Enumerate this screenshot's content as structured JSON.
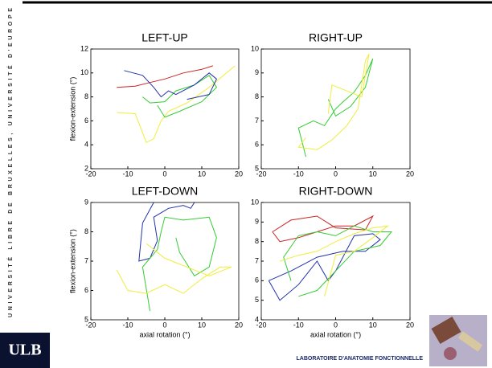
{
  "banner": "UNIVERSITÉ LIBRE DE BRUXELLES, UNIVERSITÉ D'EUROPE",
  "logo": "ULB",
  "lab": "LABORATOIRE D'ANATOMIE FONCTIONNELLE",
  "chart_data": [
    {
      "type": "line",
      "title": "LEFT-UP",
      "ylabel": "flexion-extension (°)",
      "xlim": [
        -20,
        20
      ],
      "xticks": [
        -20,
        -10,
        0,
        10,
        20
      ],
      "ylim": [
        2,
        12
      ],
      "yticks": [
        2,
        4,
        6,
        8,
        10,
        12
      ],
      "series": [
        {
          "color": "#eeee3a",
          "x": [
            -13,
            -8,
            -5,
            -3,
            -1,
            1,
            6,
            12,
            19
          ],
          "y": [
            6.7,
            6.6,
            4.2,
            4.5,
            6,
            6.8,
            7.5,
            8.8,
            10.6
          ]
        },
        {
          "color": "#33cc33",
          "x": [
            -6,
            -4,
            0,
            3,
            8,
            12,
            14,
            10,
            4,
            0,
            -2
          ],
          "y": [
            8,
            7.5,
            7.6,
            8.5,
            9,
            9.8,
            8.8,
            7.6,
            6.8,
            6.3,
            7.3
          ]
        },
        {
          "color": "#cc2222",
          "x": [
            -13,
            -8,
            -4,
            0,
            5,
            10,
            13
          ],
          "y": [
            8.8,
            8.9,
            9.2,
            9.5,
            10,
            10.3,
            10.6
          ]
        },
        {
          "color": "#2233aa",
          "x": [
            -11,
            -6,
            -3,
            -1,
            1,
            3,
            8,
            12,
            14,
            12,
            6
          ],
          "y": [
            10.2,
            9.8,
            8.8,
            8,
            8.5,
            8.2,
            9,
            10,
            9.5,
            8.2,
            7.8
          ]
        }
      ]
    },
    {
      "type": "line",
      "title": "RIGHT-UP",
      "xlim": [
        -20,
        20
      ],
      "xticks": [
        -20,
        -10,
        0,
        10,
        20
      ],
      "ylim": [
        5,
        10
      ],
      "yticks": [
        5,
        6,
        7,
        8,
        9,
        10
      ],
      "series": [
        {
          "color": "#33cc33",
          "x": [
            -8,
            -10,
            -6,
            -3,
            0,
            2,
            5,
            8,
            10,
            8,
            4,
            0,
            -2
          ],
          "y": [
            5.5,
            6.7,
            7,
            6.8,
            7.5,
            7.8,
            8.2,
            8.9,
            9.6,
            8.4,
            7.6,
            7.2,
            7.9
          ]
        },
        {
          "color": "#eeee3a",
          "x": [
            -8,
            -10,
            -5,
            -1,
            3,
            6,
            8,
            9,
            7,
            -1,
            -2
          ],
          "y": [
            6.3,
            5.9,
            5.8,
            6.2,
            6.8,
            7.5,
            9.5,
            9.8,
            8,
            8.5,
            7.3
          ]
        }
      ]
    },
    {
      "type": "line",
      "title": "LEFT-DOWN",
      "xlabel": "axial rotation (°)",
      "ylabel": "flexion-extension (°)",
      "xlim": [
        -20,
        20
      ],
      "xticks": [
        -20,
        -10,
        0,
        10,
        20
      ],
      "ylim": [
        5,
        9
      ],
      "yticks": [
        5,
        6,
        7,
        8,
        9
      ],
      "series": [
        {
          "color": "#2233aa",
          "x": [
            -3,
            -6,
            -7,
            -4,
            -2,
            -3,
            1,
            5,
            7,
            8
          ],
          "y": [
            9,
            8.3,
            7,
            7.1,
            7.7,
            8.5,
            8.8,
            8.9,
            8.8,
            9
          ]
        },
        {
          "color": "#33cc33",
          "x": [
            -4,
            -6,
            -2,
            -1,
            0,
            5,
            12,
            14,
            12,
            8,
            4,
            3
          ],
          "y": [
            5.3,
            6.8,
            7.4,
            8,
            8.5,
            8.4,
            8.5,
            7.8,
            6.8,
            6.5,
            7.3,
            7.8
          ]
        },
        {
          "color": "#eeee3a",
          "x": [
            -13,
            -10,
            -5,
            0,
            5,
            10,
            15,
            18,
            12,
            0,
            -5
          ],
          "y": [
            6.7,
            6,
            5.9,
            6.2,
            5.9,
            6.4,
            6.8,
            6.8,
            6.5,
            7.1,
            7.6
          ]
        }
      ]
    },
    {
      "type": "line",
      "title": "RIGHT-DOWN",
      "xlabel": "axial rotation (°)",
      "xlim": [
        -20,
        20
      ],
      "xticks": [
        -20,
        -10,
        0,
        10,
        20
      ],
      "ylim": [
        4,
        10
      ],
      "yticks": [
        4,
        5,
        6,
        7,
        8,
        9,
        10
      ],
      "series": [
        {
          "color": "#cc2222",
          "x": [
            -17,
            -15,
            -10,
            -5,
            0,
            5,
            10,
            8,
            0,
            -5,
            -12,
            -17
          ],
          "y": [
            8.5,
            8,
            8.2,
            8.5,
            8.8,
            8.8,
            9.3,
            8.6,
            8.7,
            9.3,
            9.1,
            8.5
          ]
        },
        {
          "color": "#2233aa",
          "x": [
            -18,
            -15,
            -10,
            -5,
            -2,
            0,
            5,
            10,
            12,
            8,
            2,
            -5,
            -12,
            -18
          ],
          "y": [
            6,
            5,
            5.8,
            7,
            6,
            6.5,
            8.3,
            8.4,
            8.1,
            7.5,
            7.5,
            7.2,
            6.5,
            6
          ]
        },
        {
          "color": "#33cc33",
          "x": [
            -12,
            -14,
            -10,
            -5,
            0,
            5,
            10,
            15,
            12,
            5,
            0,
            -5,
            -10
          ],
          "y": [
            6,
            7.2,
            8.3,
            8.5,
            8.3,
            8.8,
            8.5,
            8.5,
            7.8,
            7.5,
            6.5,
            5.5,
            5.2
          ]
        },
        {
          "color": "#eeee3a",
          "x": [
            -15,
            -10,
            -5,
            0,
            5,
            10,
            14,
            10,
            5,
            0,
            -3
          ],
          "y": [
            7,
            7.3,
            7.5,
            8,
            8.4,
            8.7,
            8.8,
            8.2,
            7.5,
            7.3,
            5.2
          ]
        }
      ]
    }
  ]
}
